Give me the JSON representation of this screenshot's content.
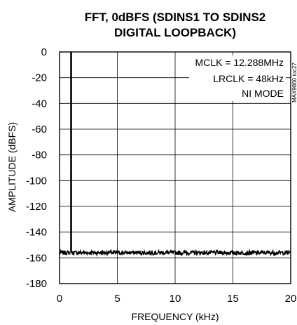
{
  "chart_data": {
    "type": "line",
    "title": "FFT, 0dBFS (SDINS1 TO SDINS2 DIGITAL LOOPBACK)",
    "title_lines": [
      "FFT, 0dBFS (SDINS1 TO SDINS2",
      "DIGITAL LOOPBACK)"
    ],
    "xlabel": "FREQUENCY (kHz)",
    "ylabel": "AMPLITUDE (dBFS)",
    "xlim": [
      0,
      20
    ],
    "ylim": [
      -180,
      0
    ],
    "xticks": [
      "0",
      "5",
      "10",
      "15",
      "20"
    ],
    "yticks": [
      "0",
      "-20",
      "-40",
      "-60",
      "-80",
      "-100",
      "-120",
      "-140",
      "-160",
      "-180"
    ],
    "grid": true,
    "annotations": [
      "MCLK = 12.288MHz",
      "LRCLK = 48kHz",
      "NI MODE"
    ],
    "figure_id": "MAX9860 toc27",
    "series": [
      {
        "peak": {
          "x": 1.0,
          "y": 0
        },
        "noise_floor": -156,
        "x": [
          0,
          0.5,
          0.9,
          0.97,
          1.0,
          1.03,
          1.1,
          1.5,
          2,
          3,
          4,
          5,
          6,
          7,
          8,
          9,
          10,
          11,
          12,
          13,
          14,
          15,
          16,
          17,
          18,
          19,
          20
        ],
        "y": [
          -156,
          -156,
          -157,
          -95,
          0,
          -95,
          -157,
          -156,
          -156,
          -155,
          -156,
          -156,
          -156,
          -155,
          -156,
          -156,
          -156,
          -155,
          -156,
          -156,
          -156,
          -156,
          -157,
          -156,
          -156,
          -156,
          -156
        ]
      }
    ]
  }
}
